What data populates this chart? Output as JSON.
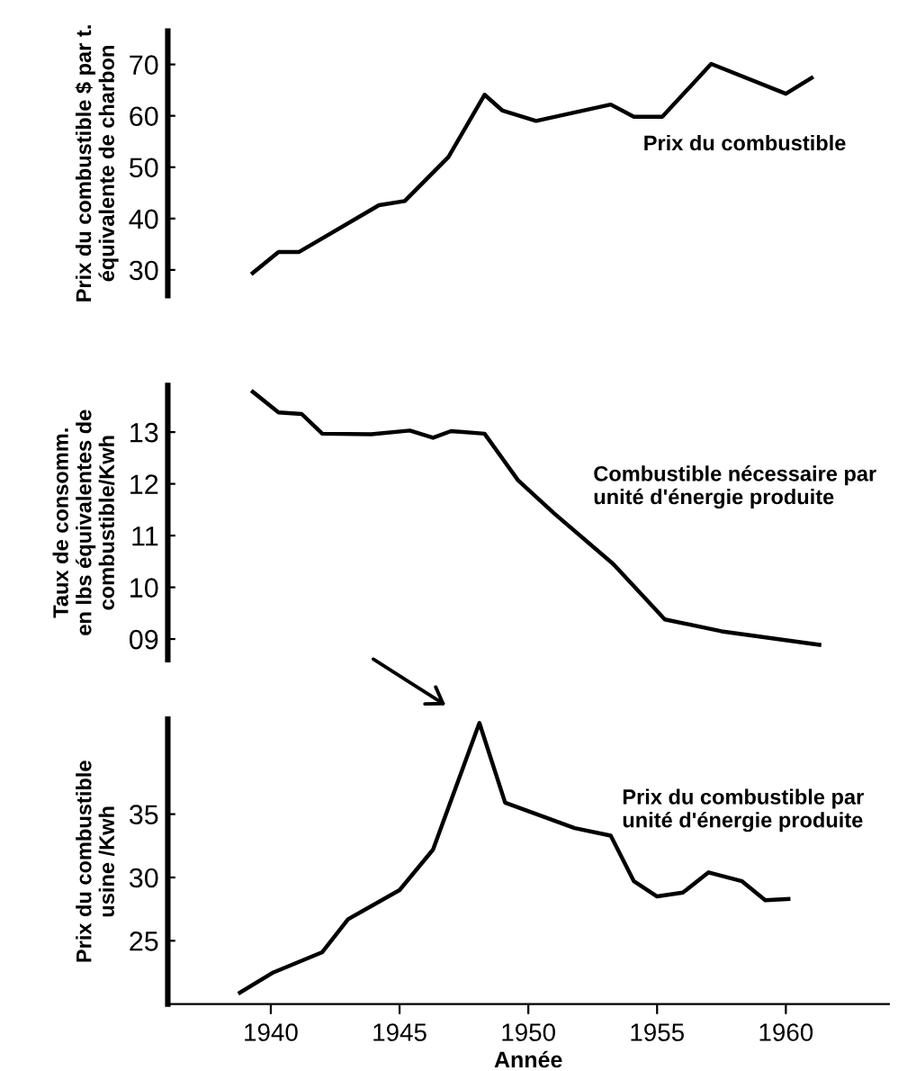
{
  "chart_data": [
    {
      "type": "line",
      "ylabel": "Prix du combustible $ par t.\néquivalente de charbon",
      "xticks": [
        1940,
        1945,
        1950,
        1955,
        1960
      ],
      "ylim": [
        25,
        76.5
      ],
      "yticks": [
        30,
        40,
        50,
        60,
        70
      ],
      "tick_labels": "y",
      "grid": false,
      "legend": false,
      "series": [
        {
          "name": "Prix du combustible",
          "color": "#000000",
          "x": [
            1939.3,
            1940.3,
            1941.1,
            1944.2,
            1945.2,
            1946.9,
            1948.3,
            1949.0,
            1950.3,
            1953.2,
            1954.1,
            1955.2,
            1957.1,
            1960.0,
            1961.0
          ],
          "values": [
            29.4,
            33.5,
            33.5,
            42.6,
            43.4,
            52,
            64.1,
            61,
            59,
            62.2,
            59.8,
            59.8,
            70.1,
            64.3,
            67.4
          ]
        }
      ]
    },
    {
      "type": "line",
      "ylabel": "Taux de consomm.\nen lbs équivalentes de\ncombustible/Kwh",
      "xticks": [
        1940,
        1945,
        1950,
        1955,
        1960
      ],
      "ylim": [
        8.6,
        13.9
      ],
      "yticks": [
        {
          "value": 9,
          "label": "09"
        },
        10,
        11,
        12,
        13
      ],
      "tick_labels": "y",
      "grid": false,
      "legend": false,
      "series": [
        {
          "name": "Combustible nécessaire par\nunité d'énergie produite",
          "color": "#000000",
          "x": [
            1939.3,
            1940.3,
            1941.2,
            1942.0,
            1943.9,
            1945.4,
            1946.3,
            1947.0,
            1948.3,
            1949.6,
            1951.0,
            1953.3,
            1955.3,
            1957.5,
            1961.3
          ],
          "values": [
            13.78,
            13.38,
            13.35,
            12.97,
            12.96,
            13.03,
            12.89,
            13.02,
            12.97,
            12.07,
            11.43,
            10.45,
            9.38,
            9.15,
            8.89
          ]
        }
      ]
    },
    {
      "type": "line",
      "xlabel": "Année",
      "ylabel": "Prix du combustible\nusine /Kwh",
      "xlim": [
        1936,
        1964
      ],
      "xticks": [
        1940,
        1945,
        1950,
        1955,
        1960
      ],
      "ylim": [
        20,
        42.5
      ],
      "yticks": [
        25,
        30,
        35
      ],
      "grid": false,
      "legend": false,
      "series": [
        {
          "name": "Prix du combustible par\nunité d'énergie produite",
          "color": "#000000",
          "x": [
            1938.8,
            1940.1,
            1942.0,
            1943.0,
            1945.0,
            1946.3,
            1948.1,
            1949.1,
            1951.8,
            1953.2,
            1954.1,
            1955.0,
            1956.0,
            1957.0,
            1958.3,
            1959.2,
            1960.1
          ],
          "values": [
            20.9,
            22.5,
            24.1,
            26.7,
            29.0,
            32.2,
            42.2,
            35.9,
            33.9,
            33.3,
            29.7,
            28.5,
            28.8,
            30.4,
            29.7,
            28.2,
            28.3
          ]
        }
      ]
    }
  ]
}
